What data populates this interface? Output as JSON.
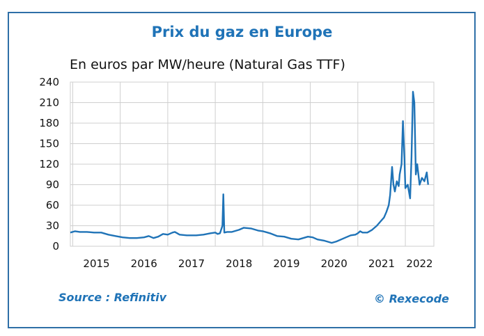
{
  "title": "Prix du gaz en Europe",
  "subtitle": "En euros par MW/heure (Natural Gas TTF)",
  "source": "Source : Refinitiv",
  "copyright": "© Rexecode",
  "colors": {
    "line": "#1f73b7",
    "frame": "#2e6fa7",
    "grid": "#cfcfcf",
    "text": "#111111"
  },
  "chart_data": {
    "type": "line",
    "title": "Prix du gaz en Europe",
    "ylabel": "En euros par MW/heure (Natural Gas TTF)",
    "xlabel": "",
    "ylim": [
      0,
      240
    ],
    "xlim": [
      2014.95,
      2022.6
    ],
    "yticks": [
      "0",
      "30",
      "60",
      "90",
      "120",
      "150",
      "180",
      "210",
      "240"
    ],
    "xticks": [
      "2015",
      "2016",
      "2017",
      "2018",
      "2019",
      "2020",
      "2021",
      "2022"
    ],
    "grid": true,
    "series": [
      {
        "values": [
          [
            2014.95,
            20
          ],
          [
            2015.05,
            22
          ],
          [
            2015.15,
            21
          ],
          [
            2015.3,
            21
          ],
          [
            2015.45,
            20
          ],
          [
            2015.6,
            20
          ],
          [
            2015.75,
            17
          ],
          [
            2015.9,
            15
          ],
          [
            2016.05,
            13
          ],
          [
            2016.2,
            12
          ],
          [
            2016.35,
            12
          ],
          [
            2016.5,
            13
          ],
          [
            2016.6,
            15
          ],
          [
            2016.7,
            12
          ],
          [
            2016.8,
            14
          ],
          [
            2016.9,
            18
          ],
          [
            2017.0,
            17
          ],
          [
            2017.1,
            20
          ],
          [
            2017.15,
            21
          ],
          [
            2017.25,
            17
          ],
          [
            2017.4,
            16
          ],
          [
            2017.6,
            16
          ],
          [
            2017.75,
            17
          ],
          [
            2017.9,
            19
          ],
          [
            2018.0,
            20
          ],
          [
            2018.05,
            18
          ],
          [
            2018.1,
            19
          ],
          [
            2018.15,
            30
          ],
          [
            2018.17,
            76
          ],
          [
            2018.19,
            20
          ],
          [
            2018.25,
            21
          ],
          [
            2018.35,
            21
          ],
          [
            2018.5,
            24
          ],
          [
            2018.6,
            27
          ],
          [
            2018.75,
            26
          ],
          [
            2018.9,
            23
          ],
          [
            2019.0,
            22
          ],
          [
            2019.15,
            19
          ],
          [
            2019.3,
            15
          ],
          [
            2019.45,
            14
          ],
          [
            2019.6,
            11
          ],
          [
            2019.75,
            10
          ],
          [
            2019.85,
            12
          ],
          [
            2019.95,
            14
          ],
          [
            2020.05,
            13
          ],
          [
            2020.15,
            10
          ],
          [
            2020.3,
            8
          ],
          [
            2020.45,
            5
          ],
          [
            2020.55,
            7
          ],
          [
            2020.65,
            10
          ],
          [
            2020.75,
            13
          ],
          [
            2020.85,
            16
          ],
          [
            2020.95,
            17
          ],
          [
            2021.0,
            19
          ],
          [
            2021.05,
            22
          ],
          [
            2021.1,
            20
          ],
          [
            2021.2,
            20
          ],
          [
            2021.3,
            24
          ],
          [
            2021.4,
            30
          ],
          [
            2021.5,
            38
          ],
          [
            2021.55,
            42
          ],
          [
            2021.6,
            50
          ],
          [
            2021.65,
            60
          ],
          [
            2021.68,
            75
          ],
          [
            2021.72,
            116
          ],
          [
            2021.75,
            90
          ],
          [
            2021.78,
            80
          ],
          [
            2021.82,
            95
          ],
          [
            2021.86,
            88
          ],
          [
            2021.88,
            105
          ],
          [
            2021.92,
            120
          ],
          [
            2021.95,
            183
          ],
          [
            2021.98,
            130
          ],
          [
            2022.0,
            85
          ],
          [
            2022.05,
            90
          ],
          [
            2022.1,
            70
          ],
          [
            2022.13,
            130
          ],
          [
            2022.16,
            226
          ],
          [
            2022.19,
            210
          ],
          [
            2022.22,
            105
          ],
          [
            2022.25,
            120
          ],
          [
            2022.3,
            90
          ],
          [
            2022.35,
            100
          ],
          [
            2022.4,
            95
          ],
          [
            2022.45,
            108
          ],
          [
            2022.48,
            90
          ]
        ]
      }
    ]
  }
}
